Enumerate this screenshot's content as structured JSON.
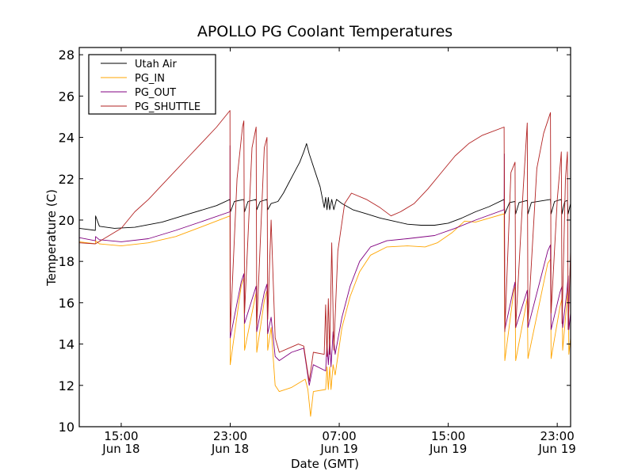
{
  "chart_data": {
    "type": "line",
    "title": "APOLLO PG Coolant Temperatures",
    "xlabel": "Date (GMT)",
    "ylabel": "Temperature (C)",
    "x_units": "hours since 00:00 Jun 18 (GMT)",
    "xlim": [
      11.92,
      47.98
    ],
    "ylim": [
      10,
      28.35
    ],
    "grid": false,
    "legend_position": "top-left",
    "yticks": [
      10,
      12,
      14,
      16,
      18,
      20,
      22,
      24,
      26,
      28
    ],
    "xticks": [
      {
        "value": 15,
        "label": [
          "15:00",
          "Jun 18"
        ]
      },
      {
        "value": 23,
        "label": [
          "23:00",
          "Jun 18"
        ]
      },
      {
        "value": 31,
        "label": [
          "07:00",
          "Jun 19"
        ]
      },
      {
        "value": 39,
        "label": [
          "15:00",
          "Jun 19"
        ]
      },
      {
        "value": 47,
        "label": [
          "23:00",
          "Jun 19"
        ]
      }
    ],
    "series": [
      {
        "name": "Utah Air",
        "color": "#000000",
        "points": [
          [
            11.92,
            19.6
          ],
          [
            13.1,
            19.5
          ],
          [
            13.12,
            20.2
          ],
          [
            13.4,
            19.7
          ],
          [
            14.5,
            19.6
          ],
          [
            16,
            19.65
          ],
          [
            18,
            19.9
          ],
          [
            20,
            20.3
          ],
          [
            22,
            20.7
          ],
          [
            22.98,
            21.0
          ],
          [
            23.02,
            20.4
          ],
          [
            23.3,
            20.9
          ],
          [
            24.0,
            21.0
          ],
          [
            24.05,
            20.4
          ],
          [
            24.3,
            20.9
          ],
          [
            24.9,
            21.0
          ],
          [
            24.95,
            20.5
          ],
          [
            25.2,
            20.9
          ],
          [
            25.7,
            21.0
          ],
          [
            25.75,
            20.5
          ],
          [
            26.0,
            20.8
          ],
          [
            26.5,
            20.9
          ],
          [
            26.9,
            21.3
          ],
          [
            27.3,
            21.8
          ],
          [
            27.7,
            22.3
          ],
          [
            28.1,
            22.8
          ],
          [
            28.4,
            23.3
          ],
          [
            28.6,
            23.7
          ],
          [
            28.8,
            23.2
          ],
          [
            29.2,
            22.4
          ],
          [
            29.6,
            21.6
          ],
          [
            29.9,
            20.6
          ],
          [
            30.0,
            21.1
          ],
          [
            30.1,
            20.5
          ],
          [
            30.2,
            21.1
          ],
          [
            30.3,
            20.5
          ],
          [
            30.45,
            21.0
          ],
          [
            30.6,
            20.5
          ],
          [
            30.8,
            21.0
          ],
          [
            31.2,
            20.8
          ],
          [
            32,
            20.5
          ],
          [
            33,
            20.3
          ],
          [
            34,
            20.1
          ],
          [
            35,
            19.95
          ],
          [
            36,
            19.8
          ],
          [
            37,
            19.75
          ],
          [
            38,
            19.75
          ],
          [
            39,
            19.85
          ],
          [
            40,
            20.1
          ],
          [
            41,
            20.4
          ],
          [
            42,
            20.65
          ],
          [
            43.1,
            21.0
          ],
          [
            43.15,
            20.3
          ],
          [
            43.5,
            20.85
          ],
          [
            43.9,
            20.9
          ],
          [
            43.95,
            20.3
          ],
          [
            44.2,
            20.85
          ],
          [
            44.8,
            20.95
          ],
          [
            44.85,
            20.3
          ],
          [
            45.1,
            20.85
          ],
          [
            46.5,
            21.0
          ],
          [
            46.55,
            20.3
          ],
          [
            46.8,
            20.9
          ],
          [
            47.3,
            21.0
          ],
          [
            47.35,
            20.3
          ],
          [
            47.55,
            20.9
          ],
          [
            47.75,
            20.95
          ],
          [
            47.8,
            20.3
          ],
          [
            47.98,
            20.8
          ]
        ]
      },
      {
        "name": "PG_IN",
        "color": "#ffa500",
        "points": [
          [
            11.92,
            18.95
          ],
          [
            13.1,
            18.85
          ],
          [
            13.12,
            19.0
          ],
          [
            13.4,
            18.85
          ],
          [
            15,
            18.75
          ],
          [
            17,
            18.9
          ],
          [
            19,
            19.2
          ],
          [
            21,
            19.7
          ],
          [
            22.98,
            20.2
          ],
          [
            23.0,
            13.0
          ],
          [
            23.8,
            16.8
          ],
          [
            24.0,
            17.2
          ],
          [
            24.05,
            13.7
          ],
          [
            24.9,
            16.5
          ],
          [
            24.95,
            13.6
          ],
          [
            25.5,
            16.1
          ],
          [
            25.7,
            16.6
          ],
          [
            25.75,
            13.7
          ],
          [
            26.0,
            14.8
          ],
          [
            26.3,
            12.0
          ],
          [
            26.6,
            11.7
          ],
          [
            27.5,
            11.9
          ],
          [
            28.5,
            12.3
          ],
          [
            28.7,
            11.8
          ],
          [
            28.9,
            10.5
          ],
          [
            29.1,
            11.7
          ],
          [
            30,
            11.8
          ],
          [
            30.1,
            12.9
          ],
          [
            30.2,
            11.8
          ],
          [
            30.3,
            12.9
          ],
          [
            30.4,
            11.8
          ],
          [
            30.55,
            13.0
          ],
          [
            30.7,
            12.5
          ],
          [
            31.2,
            14.8
          ],
          [
            31.8,
            16.3
          ],
          [
            32.5,
            17.5
          ],
          [
            33.3,
            18.3
          ],
          [
            34.5,
            18.7
          ],
          [
            36,
            18.75
          ],
          [
            37.3,
            18.7
          ],
          [
            38.2,
            18.9
          ],
          [
            39.3,
            19.4
          ],
          [
            40.2,
            19.95
          ],
          [
            41,
            19.9
          ],
          [
            43.1,
            20.3
          ],
          [
            43.15,
            13.2
          ],
          [
            43.8,
            16.5
          ],
          [
            43.9,
            16.8
          ],
          [
            43.95,
            13.2
          ],
          [
            44.8,
            16.2
          ],
          [
            44.85,
            13.3
          ],
          [
            46.3,
            17.9
          ],
          [
            46.5,
            18.1
          ],
          [
            46.55,
            13.3
          ],
          [
            47.2,
            15.8
          ],
          [
            47.35,
            16.2
          ],
          [
            47.4,
            13.7
          ],
          [
            47.7,
            16.0
          ],
          [
            47.8,
            16.8
          ],
          [
            47.85,
            13.5
          ],
          [
            47.98,
            14.3
          ]
        ]
      },
      {
        "name": "PG_OUT",
        "color": "#800080",
        "points": [
          [
            11.92,
            19.15
          ],
          [
            13.1,
            19.0
          ],
          [
            13.12,
            19.2
          ],
          [
            13.4,
            19.05
          ],
          [
            15,
            18.95
          ],
          [
            17,
            19.1
          ],
          [
            19,
            19.5
          ],
          [
            21,
            19.95
          ],
          [
            22.98,
            20.4
          ],
          [
            22.99,
            23.6
          ],
          [
            23.0,
            14.3
          ],
          [
            23.8,
            17.0
          ],
          [
            24.0,
            17.4
          ],
          [
            24.05,
            15.0
          ],
          [
            24.9,
            16.8
          ],
          [
            24.95,
            14.6
          ],
          [
            25.5,
            16.5
          ],
          [
            25.7,
            16.9
          ],
          [
            25.75,
            14.5
          ],
          [
            26.0,
            15.3
          ],
          [
            26.3,
            13.4
          ],
          [
            26.6,
            13.2
          ],
          [
            27.5,
            13.6
          ],
          [
            28.4,
            13.8
          ],
          [
            28.6,
            12.9
          ],
          [
            28.8,
            12.0
          ],
          [
            29.1,
            13.0
          ],
          [
            30,
            12.7
          ],
          [
            30.1,
            14.0
          ],
          [
            30.2,
            13.0
          ],
          [
            30.3,
            14.2
          ],
          [
            30.4,
            12.9
          ],
          [
            30.55,
            14.6
          ],
          [
            30.7,
            13.5
          ],
          [
            31.2,
            15.3
          ],
          [
            31.8,
            16.8
          ],
          [
            32.5,
            18.0
          ],
          [
            33.3,
            18.7
          ],
          [
            34.5,
            19.0
          ],
          [
            36,
            19.1
          ],
          [
            38,
            19.25
          ],
          [
            39.5,
            19.6
          ],
          [
            41,
            20.0
          ],
          [
            43.1,
            20.5
          ],
          [
            43.12,
            23.2
          ],
          [
            43.15,
            14.7
          ],
          [
            43.8,
            16.7
          ],
          [
            43.9,
            17.0
          ],
          [
            43.95,
            14.8
          ],
          [
            44.8,
            16.6
          ],
          [
            44.85,
            14.8
          ],
          [
            46.3,
            18.5
          ],
          [
            46.5,
            18.8
          ],
          [
            46.55,
            14.7
          ],
          [
            47.2,
            16.5
          ],
          [
            47.35,
            16.8
          ],
          [
            47.4,
            14.8
          ],
          [
            47.7,
            16.5
          ],
          [
            47.8,
            17.3
          ],
          [
            47.85,
            14.7
          ],
          [
            47.98,
            15.5
          ]
        ]
      },
      {
        "name": "PG_SHUTTLE",
        "color": "#b22222",
        "points": [
          [
            11.92,
            18.9
          ],
          [
            13.1,
            18.85
          ],
          [
            14,
            19.2
          ],
          [
            15,
            19.6
          ],
          [
            16,
            20.4
          ],
          [
            17,
            21.0
          ],
          [
            18,
            21.7
          ],
          [
            19,
            22.4
          ],
          [
            20,
            23.1
          ],
          [
            21,
            23.8
          ],
          [
            22,
            24.5
          ],
          [
            22.98,
            25.3
          ],
          [
            23.0,
            14.6
          ],
          [
            23.5,
            22.0
          ],
          [
            23.9,
            24.5
          ],
          [
            24.0,
            24.8
          ],
          [
            24.05,
            15.5
          ],
          [
            24.6,
            23.5
          ],
          [
            24.9,
            24.5
          ],
          [
            24.95,
            14.9
          ],
          [
            25.5,
            23.5
          ],
          [
            25.7,
            24.0
          ],
          [
            25.75,
            15.2
          ],
          [
            26.0,
            20.0
          ],
          [
            26.3,
            14.3
          ],
          [
            26.6,
            13.6
          ],
          [
            27.3,
            13.8
          ],
          [
            28.0,
            14.0
          ],
          [
            28.4,
            13.9
          ],
          [
            28.6,
            13.0
          ],
          [
            28.8,
            12.2
          ],
          [
            29.1,
            13.6
          ],
          [
            29.9,
            13.5
          ],
          [
            30.0,
            15.9
          ],
          [
            30.1,
            13.4
          ],
          [
            30.2,
            16.2
          ],
          [
            30.3,
            13.5
          ],
          [
            30.45,
            18.9
          ],
          [
            30.6,
            13.7
          ],
          [
            30.9,
            18.5
          ],
          [
            31.4,
            20.8
          ],
          [
            31.9,
            21.3
          ],
          [
            33,
            21.0
          ],
          [
            34,
            20.6
          ],
          [
            34.8,
            20.2
          ],
          [
            35.5,
            20.4
          ],
          [
            36.5,
            20.8
          ],
          [
            37.5,
            21.5
          ],
          [
            38.5,
            22.3
          ],
          [
            39.5,
            23.1
          ],
          [
            40.5,
            23.7
          ],
          [
            41.5,
            24.1
          ],
          [
            43.1,
            24.5
          ],
          [
            43.15,
            14.6
          ],
          [
            43.6,
            22.3
          ],
          [
            43.9,
            22.8
          ],
          [
            43.95,
            14.8
          ],
          [
            44.5,
            21.5
          ],
          [
            44.8,
            24.7
          ],
          [
            44.85,
            15.0
          ],
          [
            45.5,
            22.5
          ],
          [
            46.0,
            24.2
          ],
          [
            46.5,
            25.2
          ],
          [
            46.55,
            15.5
          ],
          [
            47.0,
            21.0
          ],
          [
            47.3,
            23.3
          ],
          [
            47.35,
            15.0
          ],
          [
            47.6,
            22.0
          ],
          [
            47.75,
            23.3
          ],
          [
            47.8,
            14.7
          ],
          [
            47.98,
            18.5
          ]
        ]
      }
    ]
  }
}
